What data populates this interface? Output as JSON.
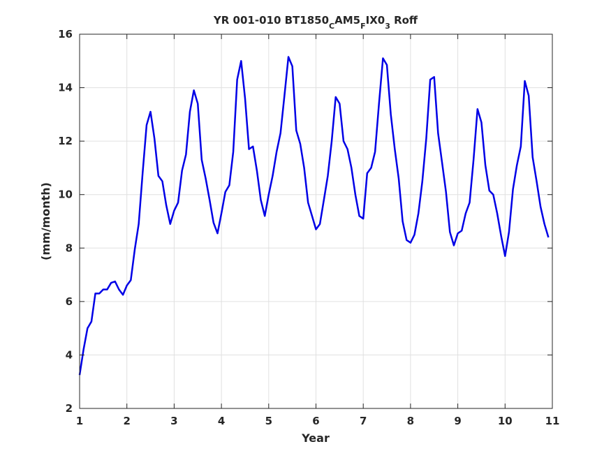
{
  "chart_data": {
    "type": "line",
    "title": {
      "prefix": "YR 001-010 BT1850",
      "sub1": "C",
      "mid1": "AM5",
      "sub2": "F",
      "mid2": "IX0",
      "sub3": "3",
      "suffix": " Roff"
    },
    "xlabel": "Year",
    "ylabel": "(mm/month)",
    "xlim": [
      1,
      11
    ],
    "ylim": [
      2,
      16
    ],
    "grid": true,
    "x_ticks": [
      "1",
      "2",
      "3",
      "4",
      "5",
      "6",
      "7",
      "8",
      "9",
      "10",
      "11"
    ],
    "y_ticks": [
      "2",
      "4",
      "6",
      "8",
      "10",
      "12",
      "14",
      "16"
    ],
    "colors": {
      "line": "#0000e6",
      "axis": "#262626",
      "grid": "#e0e0e0"
    },
    "series": [
      {
        "x": [
          1.0,
          1.083,
          1.167,
          1.25,
          1.333,
          1.417,
          1.5,
          1.583,
          1.667,
          1.75,
          1.833,
          1.917,
          2.0,
          2.083,
          2.167,
          2.25,
          2.333,
          2.417,
          2.5,
          2.583,
          2.667,
          2.75,
          2.833,
          2.917,
          3.0,
          3.083,
          3.167,
          3.25,
          3.333,
          3.417,
          3.5,
          3.583,
          3.667,
          3.75,
          3.833,
          3.917,
          4.0,
          4.083,
          4.167,
          4.25,
          4.333,
          4.417,
          4.5,
          4.583,
          4.667,
          4.75,
          4.833,
          4.917,
          5.0,
          5.083,
          5.167,
          5.25,
          5.333,
          5.417,
          5.5,
          5.583,
          5.667,
          5.75,
          5.833,
          5.917,
          6.0,
          6.083,
          6.167,
          6.25,
          6.333,
          6.417,
          6.5,
          6.583,
          6.667,
          6.75,
          6.833,
          6.917,
          7.0,
          7.083,
          7.167,
          7.25,
          7.333,
          7.417,
          7.5,
          7.583,
          7.667,
          7.75,
          7.833,
          7.917,
          8.0,
          8.083,
          8.167,
          8.25,
          8.333,
          8.417,
          8.5,
          8.583,
          8.667,
          8.75,
          8.833,
          8.917,
          9.0,
          9.083,
          9.167,
          9.25,
          9.333,
          9.417,
          9.5,
          9.583,
          9.667,
          9.75,
          9.833,
          9.917,
          10.0,
          10.083,
          10.167,
          10.25,
          10.333,
          10.417,
          10.5,
          10.583,
          10.667,
          10.75,
          10.833,
          10.917
        ],
        "values": [
          3.25,
          4.2,
          5.0,
          5.25,
          6.3,
          6.3,
          6.45,
          6.45,
          6.7,
          6.75,
          6.45,
          6.25,
          6.6,
          6.8,
          7.95,
          8.9,
          10.8,
          12.6,
          13.1,
          12.1,
          10.7,
          10.5,
          9.6,
          8.9,
          9.4,
          9.7,
          10.9,
          11.5,
          13.1,
          13.9,
          13.4,
          11.3,
          10.6,
          9.8,
          8.95,
          8.55,
          9.3,
          10.1,
          10.35,
          11.6,
          14.3,
          15.0,
          13.6,
          11.7,
          11.8,
          10.9,
          9.8,
          9.2,
          10.0,
          10.7,
          11.6,
          12.3,
          13.7,
          15.15,
          14.8,
          12.4,
          11.9,
          11.0,
          9.7,
          9.2,
          8.7,
          8.9,
          9.8,
          10.7,
          12.0,
          13.65,
          13.4,
          12.0,
          11.7,
          11.0,
          10.0,
          9.2,
          9.1,
          10.8,
          11.0,
          11.6,
          13.4,
          15.1,
          14.85,
          13.0,
          11.7,
          10.6,
          9.0,
          8.3,
          8.2,
          8.5,
          9.3,
          10.5,
          12.1,
          14.3,
          14.4,
          12.3,
          11.2,
          10.1,
          8.6,
          8.1,
          8.55,
          8.65,
          9.3,
          9.7,
          11.3,
          13.2,
          12.7,
          11.1,
          10.15,
          10.0,
          9.3,
          8.45,
          7.7,
          8.6,
          10.2,
          11.1,
          11.8,
          14.25,
          13.7,
          11.4,
          10.5,
          9.55,
          8.9,
          8.4
        ]
      }
    ]
  }
}
